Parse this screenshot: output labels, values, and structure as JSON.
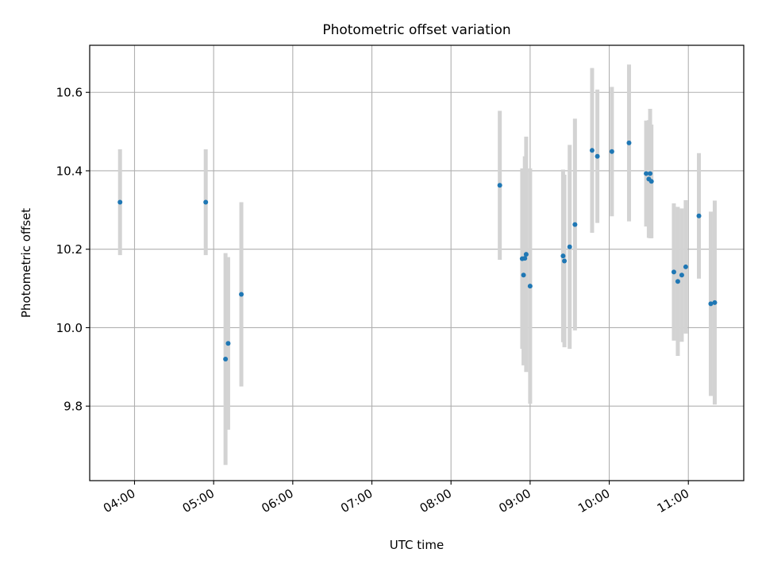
{
  "chart_data": {
    "type": "scatter",
    "title": "Photometric offset variation",
    "xlabel": "UTC time",
    "ylabel": "Photometric offset",
    "x_axis": {
      "unit": "UTC time (HH:MM)",
      "range": [
        "03:26",
        "11:42"
      ],
      "ticks": [
        "04:00",
        "05:00",
        "06:00",
        "07:00",
        "08:00",
        "09:00",
        "10:00",
        "11:00"
      ]
    },
    "y_axis": {
      "range": [
        9.61,
        10.72
      ],
      "ticks": [
        "9.8",
        "10.0",
        "10.2",
        "10.4",
        "10.6"
      ],
      "tick_values": [
        9.8,
        10.0,
        10.2,
        10.4,
        10.6
      ]
    },
    "grid": true,
    "marker_color": "#1f77b4",
    "errorbar_color": "#d3d3d3",
    "points": [
      {
        "x": "03:49",
        "y": 10.32,
        "err": 0.135
      },
      {
        "x": "04:54",
        "y": 10.32,
        "err": 0.135
      },
      {
        "x": "05:09",
        "y": 9.92,
        "err": 0.27
      },
      {
        "x": "05:11",
        "y": 9.96,
        "err": 0.22
      },
      {
        "x": "05:21",
        "y": 10.085,
        "err": 0.235
      },
      {
        "x": "08:37",
        "y": 10.363,
        "err": 0.19
      },
      {
        "x": "08:54",
        "y": 10.176,
        "err": 0.23
      },
      {
        "x": "08:55",
        "y": 10.134,
        "err": 0.23
      },
      {
        "x": "08:56",
        "y": 10.177,
        "err": 0.26
      },
      {
        "x": "08:57",
        "y": 10.187,
        "err": 0.3
      },
      {
        "x": "09:00",
        "y": 10.106,
        "err": 0.3
      },
      {
        "x": "09:25",
        "y": 10.183,
        "err": 0.22
      },
      {
        "x": "09:26",
        "y": 10.17,
        "err": 0.22
      },
      {
        "x": "09:30",
        "y": 10.206,
        "err": 0.26
      },
      {
        "x": "09:34",
        "y": 10.263,
        "err": 0.27
      },
      {
        "x": "09:47",
        "y": 10.452,
        "err": 0.21
      },
      {
        "x": "09:51",
        "y": 10.437,
        "err": 0.17
      },
      {
        "x": "10:02",
        "y": 10.449,
        "err": 0.165
      },
      {
        "x": "10:15",
        "y": 10.471,
        "err": 0.2
      },
      {
        "x": "10:28",
        "y": 10.393,
        "err": 0.135
      },
      {
        "x": "10:30",
        "y": 10.379,
        "err": 0.15
      },
      {
        "x": "10:31",
        "y": 10.393,
        "err": 0.165
      },
      {
        "x": "10:32",
        "y": 10.373,
        "err": 0.145
      },
      {
        "x": "10:49",
        "y": 10.142,
        "err": 0.175
      },
      {
        "x": "10:52",
        "y": 10.118,
        "err": 0.19
      },
      {
        "x": "10:55",
        "y": 10.134,
        "err": 0.17
      },
      {
        "x": "10:58",
        "y": 10.155,
        "err": 0.17
      },
      {
        "x": "11:08",
        "y": 10.285,
        "err": 0.16
      },
      {
        "x": "11:17",
        "y": 10.061,
        "err": 0.235
      },
      {
        "x": "11:20",
        "y": 10.064,
        "err": 0.26
      }
    ]
  }
}
